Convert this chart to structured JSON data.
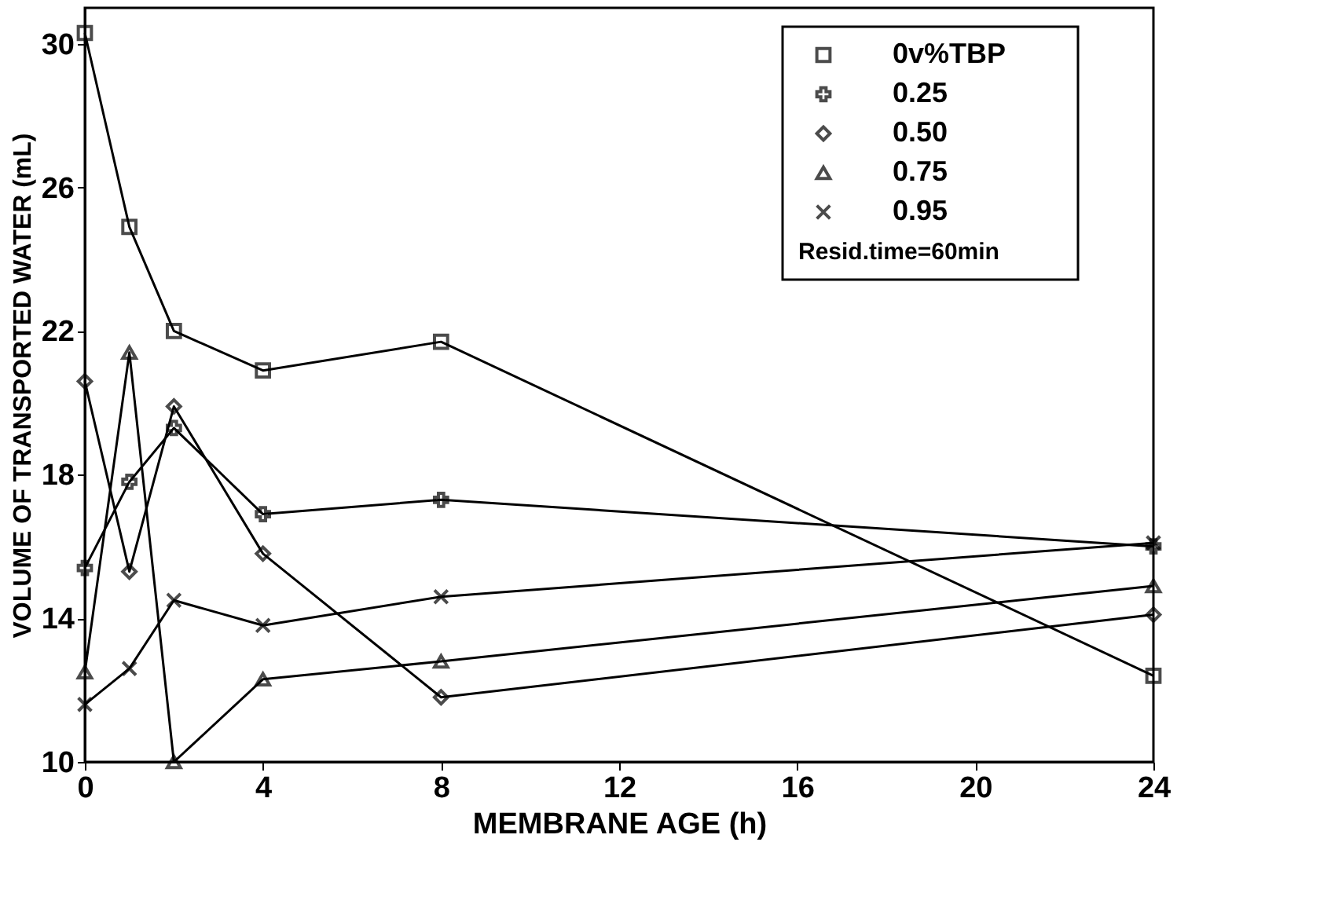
{
  "chart_data": {
    "type": "line",
    "xlabel": "MEMBRANE AGE (h)",
    "ylabel": "VOLUME OF TRANSPORTED WATER (mL)",
    "x": [
      0,
      1,
      2,
      4,
      8,
      24
    ],
    "series": [
      {
        "name": "0v%TBP",
        "color": "#000000",
        "marker": "square",
        "values": [
          30.3,
          24.9,
          22.0,
          20.9,
          21.7,
          12.4
        ]
      },
      {
        "name": "0.25",
        "color": "#000000",
        "marker": "plus",
        "values": [
          15.4,
          17.8,
          19.3,
          16.9,
          17.3,
          16.0
        ]
      },
      {
        "name": "0.50",
        "color": "#000000",
        "marker": "diamond",
        "values": [
          20.6,
          15.3,
          19.9,
          15.8,
          11.8,
          14.1
        ]
      },
      {
        "name": "0.75",
        "color": "#000000",
        "marker": "triangle",
        "values": [
          12.5,
          21.4,
          10.0,
          12.3,
          12.8,
          14.9
        ]
      },
      {
        "name": "0.95",
        "color": "#000000",
        "marker": "cross",
        "values": [
          11.6,
          12.6,
          14.5,
          13.8,
          14.6,
          16.1
        ]
      }
    ],
    "annotations": [
      "Resid.time=60min"
    ],
    "xlim": [
      0,
      24
    ],
    "xticks": [
      0,
      4,
      8,
      12,
      16,
      20,
      24
    ],
    "ylim": [
      10,
      31
    ],
    "yticks": [
      10,
      14,
      18,
      22,
      26,
      30
    ],
    "grid": false,
    "legend": "top right",
    "line_style": "solid"
  }
}
